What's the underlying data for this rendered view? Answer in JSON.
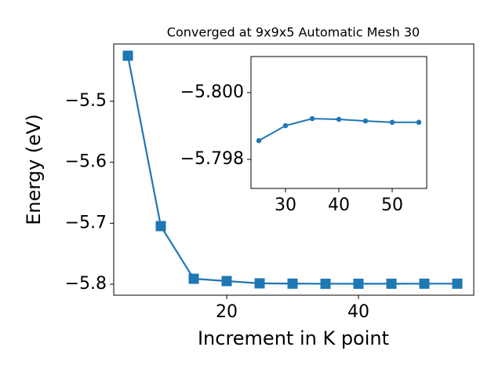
{
  "chart_data": [
    {
      "type": "line",
      "title": "Converged at 9x9x5 Automatic Mesh 30",
      "xlabel": "Increment in K point",
      "ylabel": "Energy (eV)",
      "x": [
        5,
        10,
        15,
        20,
        25,
        30,
        35,
        40,
        45,
        50,
        55
      ],
      "series": [
        {
          "color": "#1f77b4",
          "marker": "square",
          "values": [
            -5.4253,
            -5.7047,
            -5.791,
            -5.7948,
            -5.79856,
            -5.79901,
            -5.79922,
            -5.7992,
            -5.79915,
            -5.79911,
            -5.79911
          ]
        }
      ],
      "xlim": [
        2.857,
        57.5
      ],
      "ylim": [
        -5.818,
        -5.406
      ],
      "xticks": [
        20,
        40
      ],
      "yticks": [
        {
          "value": -5.5,
          "label": "−5.5"
        },
        {
          "value": -5.6,
          "label": "−5.6"
        },
        {
          "value": -5.7,
          "label": "−5.7"
        },
        {
          "value": -5.8,
          "label": "−5.8"
        }
      ]
    },
    {
      "type": "line",
      "x": [
        25,
        30,
        35,
        40,
        45,
        50,
        55
      ],
      "series": [
        {
          "color": "#1f77b4",
          "marker": "circle",
          "values": [
            -5.79856,
            -5.79901,
            -5.79922,
            -5.7992,
            -5.79915,
            -5.79911,
            -5.79911
          ]
        }
      ],
      "xlim": [
        23.53,
        56.47
      ],
      "ylim": [
        -5.79713,
        -5.80108
      ],
      "xticks": [
        30,
        40,
        50
      ],
      "yticks": [
        {
          "value": -5.8,
          "label": "−5.800"
        },
        {
          "value": -5.798,
          "label": "−5.798"
        }
      ]
    }
  ]
}
